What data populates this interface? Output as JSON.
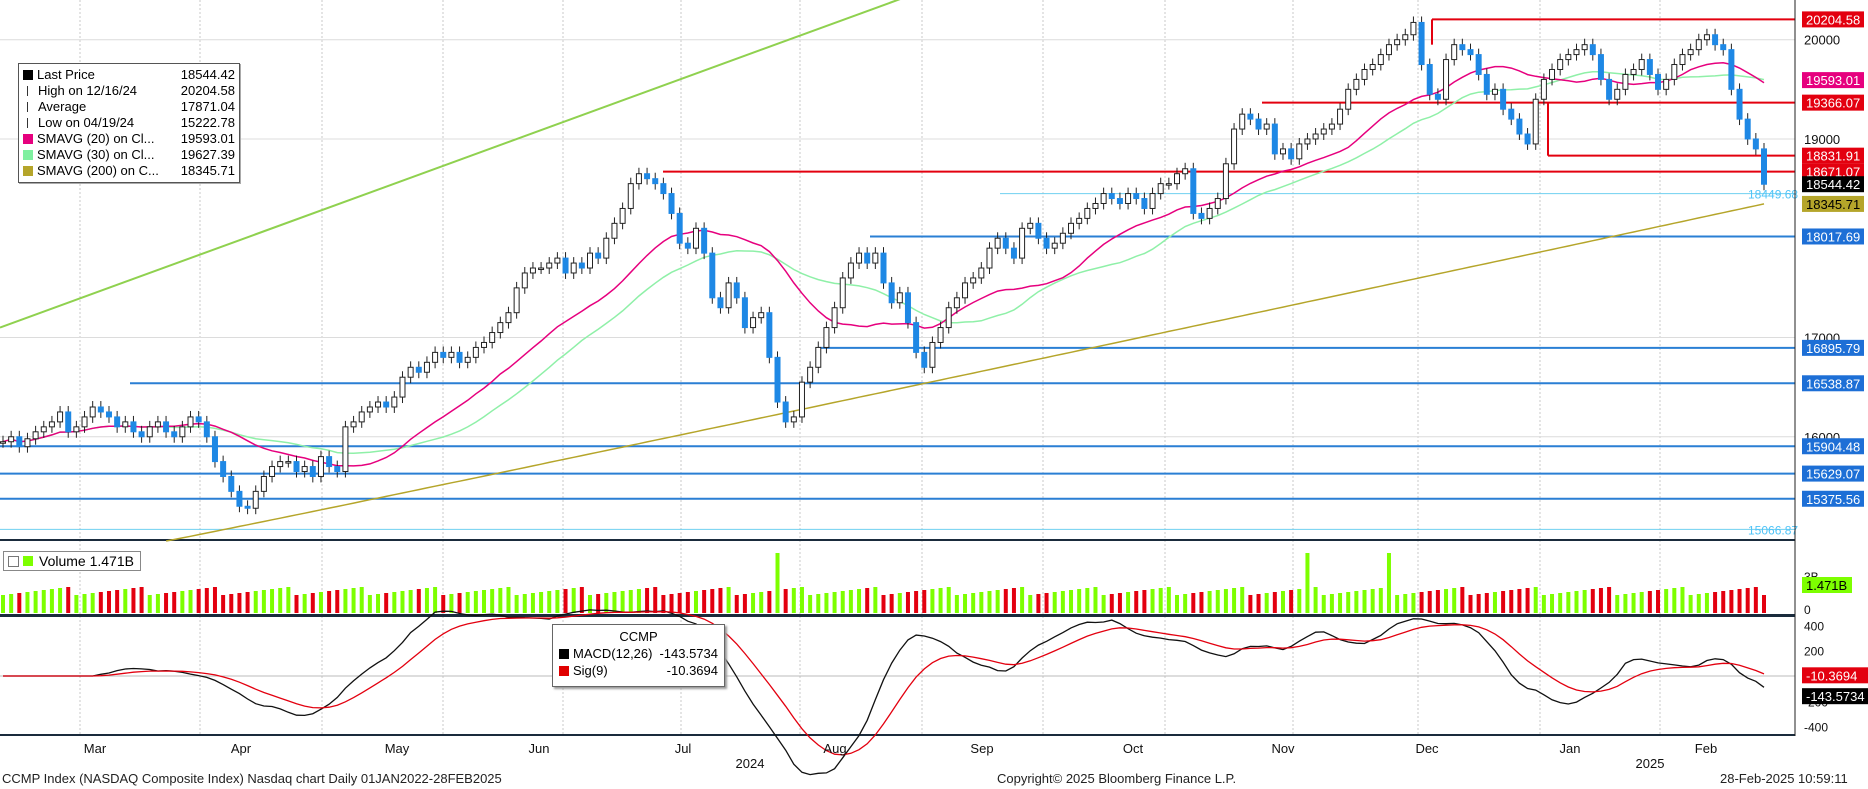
{
  "footer": {
    "left": "CCMP Index (NASDAQ Composite Index) Nasdaq chart  Daily 01JAN2022-28FEB2025",
    "center": "Copyright© 2025 Bloomberg Finance L.P.",
    "right": "28-Feb-2025 10:59:11"
  },
  "legend": [
    {
      "icon": "black-square",
      "label": "Last Price",
      "value": "18544.42",
      "color": "#000000"
    },
    {
      "icon": "high-marker",
      "label": "High on 12/16/24",
      "value": "20204.58",
      "color": "#000000"
    },
    {
      "icon": "average-marker",
      "label": "Average",
      "value": "17871.04",
      "color": "#000000"
    },
    {
      "icon": "low-marker",
      "label": "Low on 04/19/24",
      "value": "15222.78",
      "color": "#000000"
    },
    {
      "icon": "magenta-square",
      "label": "SMAVG (20)  on Cl...",
      "value": "19593.01",
      "color": "#e6007e"
    },
    {
      "icon": "lightgreen-square",
      "label": "SMAVG (30)  on Cl...",
      "value": "19627.39",
      "color": "#7ff0a0"
    },
    {
      "icon": "olive-square",
      "label": "SMAVG (200)  on C...",
      "value": "18345.71",
      "color": "#b5a52a"
    }
  ],
  "volume_panel": {
    "label": "Volume",
    "value": "1.471B",
    "value_tag": "1.471B"
  },
  "macd_panel": {
    "title": "CCMP",
    "rows": [
      {
        "label": "MACD(12,26)",
        "value": "-143.5734",
        "color": "#000000"
      },
      {
        "label": "Sig(9)",
        "value": "-10.3694",
        "color": "#e00000"
      }
    ]
  },
  "chart_data": {
    "type": "candlestick",
    "ticker": "CCMP Index",
    "x_axis": {
      "months": [
        "Mar",
        "Apr",
        "May",
        "Jun",
        "Jul",
        "Aug",
        "Sep",
        "Oct",
        "Nov",
        "Dec",
        "Jan",
        "Feb"
      ],
      "years": [
        "2024",
        "2025"
      ]
    },
    "price_axis": {
      "ticks": [
        16000,
        17000,
        19000,
        20000
      ],
      "range": [
        14950,
        20400
      ]
    },
    "volume_axis": {
      "ticks": [
        "3B",
        "0"
      ]
    },
    "macd_axis": {
      "ticks": [
        400,
        200,
        -200,
        -400
      ],
      "range": [
        -450,
        450
      ]
    },
    "tags": [
      {
        "value": "20204.58",
        "bg": "#e3000f",
        "fg": "#ffffff"
      },
      {
        "value": "19593.01",
        "bg": "#e6007e",
        "fg": "#ffffff"
      },
      {
        "value": "19366.07",
        "bg": "#e3000f",
        "fg": "#ffffff"
      },
      {
        "value": "18831.91",
        "bg": "#e3000f",
        "fg": "#ffffff"
      },
      {
        "value": "18671.07",
        "bg": "#e3000f",
        "fg": "#ffffff"
      },
      {
        "value": "18544.42",
        "bg": "#000000",
        "fg": "#ffffff"
      },
      {
        "value": "18345.71",
        "bg": "#b5a52a",
        "fg": "#000000"
      },
      {
        "value": "18017.69",
        "bg": "#1d6fd6",
        "fg": "#ffffff"
      },
      {
        "value": "16895.79",
        "bg": "#1d6fd6",
        "fg": "#ffffff"
      },
      {
        "value": "16538.87",
        "bg": "#1d6fd6",
        "fg": "#ffffff"
      },
      {
        "value": "15904.48",
        "bg": "#1d6fd6",
        "fg": "#ffffff"
      },
      {
        "value": "15629.07",
        "bg": "#1d6fd6",
        "fg": "#ffffff"
      },
      {
        "value": "15375.56",
        "bg": "#1d6fd6",
        "fg": "#ffffff"
      }
    ],
    "plain_labels": [
      "18449.68",
      "15066.87"
    ],
    "macd_tags": [
      {
        "value": "-10.3694",
        "bg": "#e3000f",
        "fg": "#ffffff"
      },
      {
        "value": "-143.5734",
        "bg": "#000000",
        "fg": "#ffffff"
      }
    ],
    "resistance_lines_red": [
      20204.58,
      19366.07,
      18831.91,
      18671.07
    ],
    "support_lines_blue": [
      18017.69,
      16895.79,
      16538.87,
      15904.48,
      15629.07,
      15375.56
    ],
    "close_series": [
      15950,
      16000,
      15900,
      15980,
      16050,
      16100,
      16150,
      16250,
      16050,
      16100,
      16200,
      16300,
      16250,
      16200,
      16100,
      16150,
      16050,
      16000,
      16100,
      16150,
      16050,
      16000,
      16100,
      16200,
      16150,
      16000,
      15750,
      15600,
      15450,
      15300,
      15280,
      15450,
      15600,
      15700,
      15750,
      15750,
      15650,
      15700,
      15600,
      15800,
      15700,
      15650,
      16100,
      16150,
      16250,
      16300,
      16350,
      16300,
      16400,
      16600,
      16700,
      16650,
      16750,
      16850,
      16800,
      16850,
      16750,
      16800,
      16900,
      16950,
      17050,
      17150,
      17250,
      17500,
      17650,
      17700,
      17700,
      17750,
      17800,
      17650,
      17750,
      17700,
      17850,
      17800,
      18000,
      18150,
      18300,
      18550,
      18650,
      18600,
      18550,
      18450,
      18250,
      17950,
      17900,
      18100,
      17850,
      17400,
      17300,
      17550,
      17400,
      17100,
      17200,
      17250,
      16800,
      16350,
      16150,
      16200,
      16550,
      16700,
      16900,
      17100,
      17300,
      17600,
      17750,
      17850,
      17750,
      17850,
      17550,
      17350,
      17450,
      17150,
      16850,
      16700,
      16950,
      17100,
      17300,
      17400,
      17550,
      17600,
      17700,
      17900,
      18000,
      17900,
      17800,
      18100,
      18150,
      18000,
      17900,
      17950,
      18050,
      18150,
      18200,
      18300,
      18350,
      18450,
      18400,
      18350,
      18450,
      18400,
      18300,
      18450,
      18550,
      18550,
      18650,
      18700,
      18250,
      18200,
      18300,
      18400,
      18750,
      19100,
      19250,
      19200,
      19100,
      19150,
      18850,
      18900,
      18800,
      18950,
      19000,
      19050,
      19100,
      19150,
      19300,
      19500,
      19600,
      19700,
      19750,
      19850,
      19950,
      20000,
      20050,
      20174,
      19750,
      19450,
      19400,
      19800,
      19950,
      19900,
      19850,
      19650,
      19450,
      19500,
      19300,
      19200,
      19050,
      18950,
      19400,
      19600,
      19700,
      19800,
      19850,
      19900,
      19950,
      19850,
      19600,
      19400,
      19500,
      19650,
      19700,
      19800,
      19650,
      19500,
      19600,
      19750,
      19850,
      19900,
      20000,
      20050,
      19950,
      19900,
      19500,
      19200,
      19000,
      18900,
      18544
    ]
  }
}
